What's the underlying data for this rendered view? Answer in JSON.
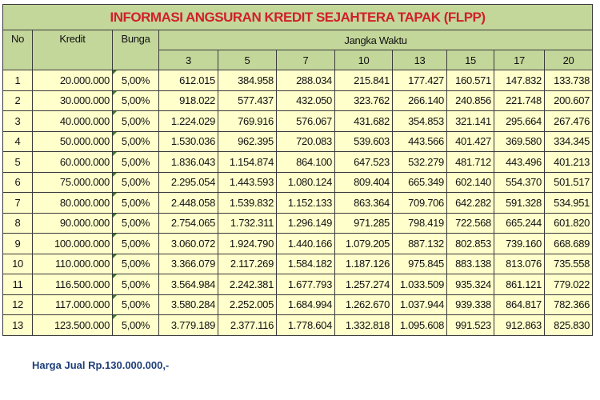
{
  "title": "INFORMASI ANGSURAN KREDIT SEJAHTERA TAPAK (FLPP)",
  "headers": {
    "no": "No",
    "kredit": "Kredit",
    "bunga": "Bunga",
    "jangka_waktu": "Jangka Waktu"
  },
  "terms": [
    "3",
    "5",
    "7",
    "10",
    "13",
    "15",
    "17",
    "20"
  ],
  "rows": [
    {
      "no": "1",
      "kredit": "20.000.000",
      "bunga": "5,00%",
      "values": [
        "612.015",
        "384.958",
        "288.034",
        "215.841",
        "177.427",
        "160.571",
        "147.832",
        "133.738"
      ]
    },
    {
      "no": "2",
      "kredit": "30.000.000",
      "bunga": "5,00%",
      "values": [
        "918.022",
        "577.437",
        "432.050",
        "323.762",
        "266.140",
        "240.856",
        "221.748",
        "200.607"
      ]
    },
    {
      "no": "3",
      "kredit": "40.000.000",
      "bunga": "5,00%",
      "values": [
        "1.224.029",
        "769.916",
        "576.067",
        "431.682",
        "354.853",
        "321.141",
        "295.664",
        "267.476"
      ]
    },
    {
      "no": "4",
      "kredit": "50.000.000",
      "bunga": "5,00%",
      "values": [
        "1.530.036",
        "962.395",
        "720.083",
        "539.603",
        "443.566",
        "401.427",
        "369.580",
        "334.345"
      ]
    },
    {
      "no": "5",
      "kredit": "60.000.000",
      "bunga": "5,00%",
      "values": [
        "1.836.043",
        "1.154.874",
        "864.100",
        "647.523",
        "532.279",
        "481.712",
        "443.496",
        "401.213"
      ]
    },
    {
      "no": "6",
      "kredit": "75.000.000",
      "bunga": "5,00%",
      "values": [
        "2.295.054",
        "1.443.593",
        "1.080.124",
        "809.404",
        "665.349",
        "602.140",
        "554.370",
        "501.517"
      ]
    },
    {
      "no": "7",
      "kredit": "80.000.000",
      "bunga": "5,00%",
      "values": [
        "2.448.058",
        "1.539.832",
        "1.152.133",
        "863.364",
        "709.706",
        "642.282",
        "591.328",
        "534.951"
      ]
    },
    {
      "no": "8",
      "kredit": "90.000.000",
      "bunga": "5,00%",
      "values": [
        "2.754.065",
        "1.732.311",
        "1.296.149",
        "971.285",
        "798.419",
        "722.568",
        "665.244",
        "601.820"
      ]
    },
    {
      "no": "9",
      "kredit": "100.000.000",
      "bunga": "5,00%",
      "values": [
        "3.060.072",
        "1.924.790",
        "1.440.166",
        "1.079.205",
        "887.132",
        "802.853",
        "739.160",
        "668.689"
      ]
    },
    {
      "no": "10",
      "kredit": "110.000.000",
      "bunga": "5,00%",
      "values": [
        "3.366.079",
        "2.117.269",
        "1.584.182",
        "1.187.126",
        "975.845",
        "883.138",
        "813.076",
        "735.558"
      ]
    },
    {
      "no": "11",
      "kredit": "116.500.000",
      "bunga": "5,00%",
      "values": [
        "3.564.984",
        "2.242.381",
        "1.677.793",
        "1.257.274",
        "1.033.509",
        "935.324",
        "861.121",
        "779.022"
      ]
    },
    {
      "no": "12",
      "kredit": "117.000.000",
      "bunga": "5,00%",
      "values": [
        "3.580.284",
        "2.252.005",
        "1.684.994",
        "1.262.670",
        "1.037.944",
        "939.338",
        "864.817",
        "782.366"
      ]
    },
    {
      "no": "13",
      "kredit": "123.500.000",
      "bunga": "5,00%",
      "values": [
        "3.779.189",
        "2.377.116",
        "1.778.604",
        "1.332.818",
        "1.095.608",
        "991.523",
        "912.863",
        "825.830"
      ]
    }
  ],
  "footer": "Harga Jual Rp.130.000.000,-",
  "colors": {
    "header_bg": "#c4d79b",
    "row_bg": "#ffffcc",
    "title_text": "#d0202a",
    "footer_text": "#1f3f7a"
  }
}
